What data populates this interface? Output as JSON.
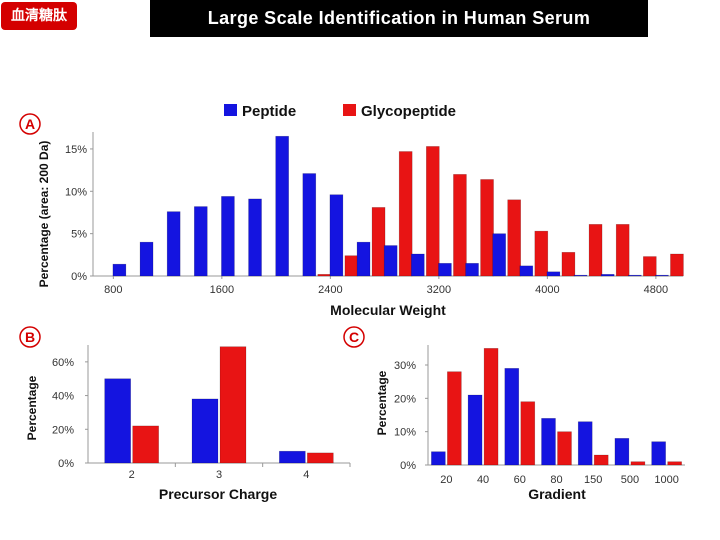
{
  "header": {
    "badge": "血清糖肽",
    "title": "Large Scale Identification in Human Serum"
  },
  "colors": {
    "peptide": "#1414e0",
    "glycopeptide": "#e81414"
  },
  "legend": {
    "peptide": "Peptide",
    "glycopeptide": "Glycopeptide"
  },
  "chart_data": [
    {
      "panel": "A",
      "type": "bar",
      "xlabel": "Molecular Weight",
      "ylabel": "Percentage (area: 200 Da)",
      "x_ticks": [
        "800",
        "1600",
        "2400",
        "3200",
        "4000",
        "4800"
      ],
      "y_ticks": [
        "0%",
        "5%",
        "10%",
        "15%"
      ],
      "ylim": [
        0,
        17
      ],
      "xlim": [
        650,
        5000
      ],
      "series": [
        {
          "name": "Peptide",
          "x": [
            900,
            1100,
            1300,
            1500,
            1700,
            1900,
            2100,
            2300,
            2500,
            2700,
            2900,
            3100,
            3300,
            3500,
            3700,
            3900,
            4100,
            4300,
            4500,
            4700,
            4900
          ],
          "values": [
            1.4,
            4.0,
            7.6,
            8.2,
            9.4,
            9.1,
            16.5,
            12.1,
            9.6,
            4.0,
            3.6,
            2.6,
            1.5,
            1.5,
            5.0,
            1.2,
            0.5,
            0.1,
            0.2,
            0.1,
            0.1
          ]
        },
        {
          "name": "Glycopeptide",
          "x": [
            900,
            1100,
            1300,
            1500,
            1700,
            1900,
            2100,
            2300,
            2500,
            2700,
            2900,
            3100,
            3300,
            3500,
            3700,
            3900,
            4100,
            4300,
            4500,
            4700,
            4900
          ],
          "values": [
            0,
            0,
            0,
            0,
            0,
            0,
            0,
            0.2,
            2.4,
            8.1,
            14.7,
            15.3,
            12.0,
            11.4,
            9.0,
            5.3,
            2.8,
            6.1,
            6.1,
            2.3,
            2.6
          ]
        }
      ]
    },
    {
      "panel": "B",
      "type": "bar",
      "xlabel": "Precursor Charge",
      "ylabel": "Percentage",
      "categories": [
        "2",
        "3",
        "4"
      ],
      "y_ticks": [
        "0%",
        "20%",
        "40%",
        "60%"
      ],
      "ylim": [
        0,
        70
      ],
      "series": [
        {
          "name": "Peptide",
          "values": [
            50,
            38,
            7
          ]
        },
        {
          "name": "Glycopeptide",
          "values": [
            22,
            69,
            6
          ]
        }
      ]
    },
    {
      "panel": "C",
      "type": "bar",
      "xlabel": "Gradient",
      "ylabel": "Percentage",
      "categories": [
        "20",
        "40",
        "60",
        "80",
        "150",
        "500",
        "1000"
      ],
      "y_ticks": [
        "0%",
        "10%",
        "20%",
        "30%"
      ],
      "ylim": [
        0,
        36
      ],
      "series": [
        {
          "name": "Peptide",
          "values": [
            4,
            21,
            29,
            14,
            13,
            8,
            7
          ]
        },
        {
          "name": "Glycopeptide",
          "values": [
            28,
            35,
            19,
            10,
            3,
            1,
            1
          ]
        }
      ]
    }
  ]
}
